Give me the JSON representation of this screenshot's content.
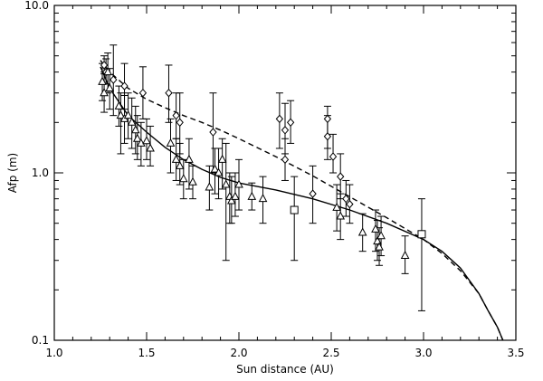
{
  "chart_data": {
    "type": "scatter",
    "title": "",
    "xlabel": "Sun distance (AU)",
    "ylabel": "Afp (m)",
    "xlim": [
      1.0,
      3.5
    ],
    "ylim": [
      0.1,
      10.0
    ],
    "yscale": "log",
    "x_ticks": [
      1.0,
      1.5,
      2.0,
      2.5,
      3.0,
      3.5
    ],
    "x_tick_labels": [
      "1.0",
      "1.5",
      "2.0",
      "2.5",
      "3.0",
      "3.5"
    ],
    "y_ticks": [
      0.1,
      1.0,
      10.0
    ],
    "y_tick_labels": [
      "0.1",
      "1.0",
      "10.0"
    ],
    "grid": false,
    "legend": false,
    "series": [
      {
        "marker": "diamond",
        "points": [
          {
            "x": 1.27,
            "y": 4.4,
            "ylo": 3.9,
            "yhi": 5.0
          },
          {
            "x": 1.28,
            "y": 4.0,
            "ylo": 3.4,
            "yhi": 4.8
          },
          {
            "x": 1.32,
            "y": 3.6,
            "ylo": 2.2,
            "yhi": 5.8
          },
          {
            "x": 1.38,
            "y": 3.3,
            "ylo": 2.4,
            "yhi": 4.5
          },
          {
            "x": 1.48,
            "y": 3.0,
            "ylo": 2.1,
            "yhi": 4.3
          },
          {
            "x": 1.62,
            "y": 3.0,
            "ylo": 2.0,
            "yhi": 4.4
          },
          {
            "x": 1.66,
            "y": 2.2,
            "ylo": 1.6,
            "yhi": 3.0
          },
          {
            "x": 1.68,
            "y": 2.0,
            "ylo": 1.3,
            "yhi": 3.0
          },
          {
            "x": 1.86,
            "y": 1.75,
            "ylo": 1.0,
            "yhi": 3.0
          },
          {
            "x": 2.22,
            "y": 2.1,
            "ylo": 1.4,
            "yhi": 3.0
          },
          {
            "x": 2.25,
            "y": 1.8,
            "ylo": 1.3,
            "yhi": 2.6
          },
          {
            "x": 2.28,
            "y": 2.0,
            "ylo": 1.5,
            "yhi": 2.7
          },
          {
            "x": 2.25,
            "y": 1.2,
            "ylo": 0.9,
            "yhi": 1.6
          },
          {
            "x": 2.4,
            "y": 0.75,
            "ylo": 0.5,
            "yhi": 1.1
          },
          {
            "x": 2.48,
            "y": 2.1,
            "ylo": 1.4,
            "yhi": 2.5
          },
          {
            "x": 2.48,
            "y": 1.65,
            "ylo": 1.2,
            "yhi": 2.2
          },
          {
            "x": 2.51,
            "y": 1.25,
            "ylo": 1.0,
            "yhi": 1.7
          },
          {
            "x": 2.55,
            "y": 0.95,
            "ylo": 0.7,
            "yhi": 1.3
          },
          {
            "x": 2.58,
            "y": 0.7,
            "ylo": 0.55,
            "yhi": 0.9
          },
          {
            "x": 2.6,
            "y": 0.65,
            "ylo": 0.5,
            "yhi": 0.85
          }
        ]
      },
      {
        "marker": "triangle",
        "points": [
          {
            "x": 1.26,
            "y": 3.5,
            "ylo": 2.7,
            "yhi": 4.5
          },
          {
            "x": 1.27,
            "y": 3.0,
            "ylo": 2.3,
            "yhi": 4.0
          },
          {
            "x": 1.29,
            "y": 4.0,
            "ylo": 3.0,
            "yhi": 5.2
          },
          {
            "x": 1.3,
            "y": 3.2,
            "ylo": 2.4,
            "yhi": 4.2
          },
          {
            "x": 1.35,
            "y": 2.5,
            "ylo": 1.9,
            "yhi": 3.3
          },
          {
            "x": 1.36,
            "y": 2.2,
            "ylo": 1.3,
            "yhi": 3.0
          },
          {
            "x": 1.38,
            "y": 2.1,
            "ylo": 1.5,
            "yhi": 2.9
          },
          {
            "x": 1.4,
            "y": 2.2,
            "ylo": 1.6,
            "yhi": 3.0
          },
          {
            "x": 1.42,
            "y": 2.0,
            "ylo": 1.4,
            "yhi": 2.8
          },
          {
            "x": 1.44,
            "y": 1.8,
            "ylo": 1.3,
            "yhi": 2.5
          },
          {
            "x": 1.45,
            "y": 1.6,
            "ylo": 1.2,
            "yhi": 2.2
          },
          {
            "x": 1.47,
            "y": 1.5,
            "ylo": 1.1,
            "yhi": 2.0
          },
          {
            "x": 1.5,
            "y": 1.55,
            "ylo": 1.2,
            "yhi": 2.1
          },
          {
            "x": 1.52,
            "y": 1.4,
            "ylo": 1.1,
            "yhi": 1.9
          },
          {
            "x": 1.63,
            "y": 1.5,
            "ylo": 1.0,
            "yhi": 2.1
          },
          {
            "x": 1.66,
            "y": 1.2,
            "ylo": 0.9,
            "yhi": 1.6
          },
          {
            "x": 1.68,
            "y": 1.1,
            "ylo": 0.85,
            "yhi": 1.5
          },
          {
            "x": 1.7,
            "y": 0.92,
            "ylo": 0.7,
            "yhi": 1.2
          },
          {
            "x": 1.73,
            "y": 1.2,
            "ylo": 0.8,
            "yhi": 1.6
          },
          {
            "x": 1.75,
            "y": 0.88,
            "ylo": 0.7,
            "yhi": 1.1
          },
          {
            "x": 1.84,
            "y": 0.82,
            "ylo": 0.6,
            "yhi": 1.1
          },
          {
            "x": 1.87,
            "y": 1.05,
            "ylo": 0.75,
            "yhi": 1.4
          },
          {
            "x": 1.89,
            "y": 1.0,
            "ylo": 0.7,
            "yhi": 1.4
          },
          {
            "x": 1.91,
            "y": 1.2,
            "ylo": 0.8,
            "yhi": 1.6
          },
          {
            "x": 1.93,
            "y": 0.85,
            "ylo": 0.3,
            "yhi": 1.5
          },
          {
            "x": 1.95,
            "y": 0.72,
            "ylo": 0.5,
            "yhi": 1.0
          },
          {
            "x": 1.96,
            "y": 0.68,
            "ylo": 0.5,
            "yhi": 0.95
          },
          {
            "x": 1.98,
            "y": 0.72,
            "ylo": 0.55,
            "yhi": 1.0
          },
          {
            "x": 2.0,
            "y": 0.85,
            "ylo": 0.6,
            "yhi": 1.2
          },
          {
            "x": 2.07,
            "y": 0.72,
            "ylo": 0.6,
            "yhi": 0.87
          },
          {
            "x": 2.13,
            "y": 0.7,
            "ylo": 0.5,
            "yhi": 0.95
          },
          {
            "x": 2.53,
            "y": 0.62,
            "ylo": 0.45,
            "yhi": 0.85
          },
          {
            "x": 2.55,
            "y": 0.55,
            "ylo": 0.4,
            "yhi": 0.75
          },
          {
            "x": 2.67,
            "y": 0.44,
            "ylo": 0.34,
            "yhi": 0.57
          },
          {
            "x": 2.74,
            "y": 0.46,
            "ylo": 0.34,
            "yhi": 0.6
          },
          {
            "x": 2.75,
            "y": 0.39,
            "ylo": 0.3,
            "yhi": 0.52
          },
          {
            "x": 2.76,
            "y": 0.36,
            "ylo": 0.28,
            "yhi": 0.47
          },
          {
            "x": 2.77,
            "y": 0.42,
            "ylo": 0.32,
            "yhi": 0.55
          },
          {
            "x": 2.9,
            "y": 0.32,
            "ylo": 0.25,
            "yhi": 0.42
          }
        ]
      },
      {
        "marker": "square",
        "points": [
          {
            "x": 2.3,
            "y": 0.6,
            "ylo": 0.3,
            "yhi": 0.95
          },
          {
            "x": 2.99,
            "y": 0.43,
            "ylo": 0.15,
            "yhi": 0.7
          }
        ]
      }
    ],
    "fit_curves": [
      {
        "style": "solid",
        "x": [
          1.25,
          1.3,
          1.4,
          1.5,
          1.6,
          1.7,
          1.8,
          1.9,
          2.0,
          2.2,
          2.4,
          2.6,
          2.8,
          3.0,
          3.1,
          3.2,
          3.3,
          3.35,
          3.4,
          3.43
        ],
        "y": [
          4.3,
          3.2,
          2.2,
          1.75,
          1.42,
          1.2,
          1.05,
          0.94,
          0.87,
          0.79,
          0.7,
          0.6,
          0.5,
          0.4,
          0.34,
          0.27,
          0.19,
          0.15,
          0.12,
          0.1
        ]
      },
      {
        "style": "dashed",
        "x": [
          1.25,
          1.3,
          1.4,
          1.5,
          1.6,
          1.7,
          1.8,
          1.9,
          2.0,
          2.2,
          2.4,
          2.6,
          2.8,
          3.0,
          3.1,
          3.2,
          3.3,
          3.35,
          3.4,
          3.43
        ],
        "y": [
          4.7,
          4.0,
          3.2,
          2.75,
          2.45,
          2.2,
          2.0,
          1.8,
          1.6,
          1.25,
          0.96,
          0.72,
          0.54,
          0.4,
          0.33,
          0.26,
          0.19,
          0.15,
          0.12,
          0.1
        ]
      }
    ]
  }
}
